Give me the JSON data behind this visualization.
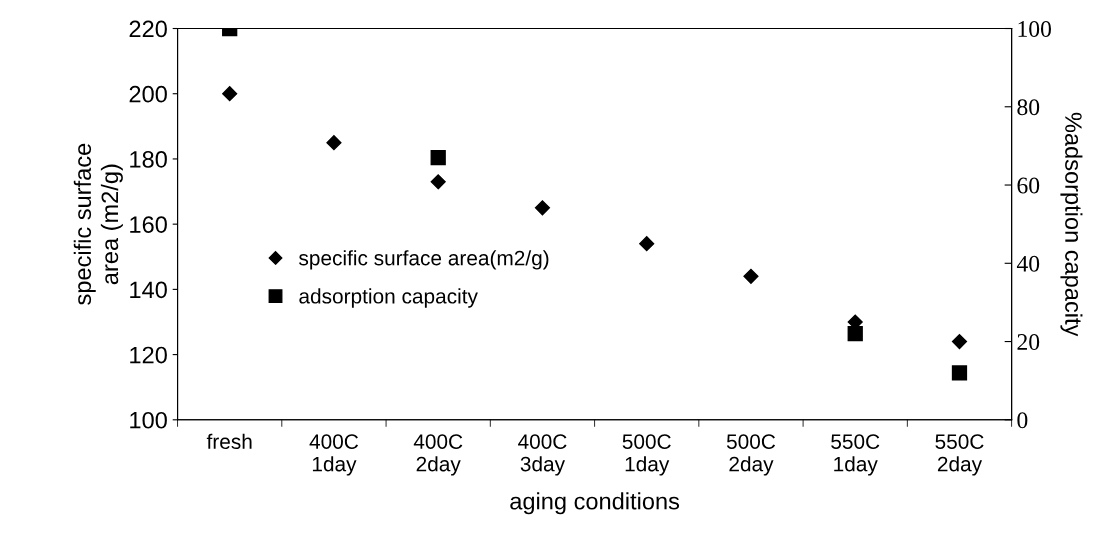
{
  "chart_data": {
    "type": "scatter",
    "xlabel": "aging conditions",
    "ylabel": "specific surface\narea (m2/g)",
    "y2label": "%adsorption capacity",
    "categories": [
      "fresh",
      "400C\n1day",
      "400C\n2day",
      "400C\n3day",
      "500C\n1day",
      "500C\n2day",
      "550C\n1day",
      "550C\n2day"
    ],
    "series": [
      {
        "name": "specific surface area(m2/g)",
        "color": "#000000",
        "marker": "diamond",
        "values": [
          200,
          185,
          173,
          165,
          154,
          144,
          130,
          124
        ]
      },
      {
        "name": "adsorption capacity",
        "color": "#000000",
        "marker": "square",
        "axis": "y2",
        "values": [
          100,
          null,
          67,
          null,
          null,
          null,
          22,
          12
        ]
      }
    ],
    "ylim": [
      100,
      220
    ],
    "yticks": [
      100,
      120,
      140,
      160,
      180,
      200,
      220
    ],
    "y2lim": [
      0,
      100
    ],
    "y2ticks": [
      0,
      20,
      40,
      60,
      80,
      100
    ],
    "grid": false,
    "legend": "left"
  }
}
